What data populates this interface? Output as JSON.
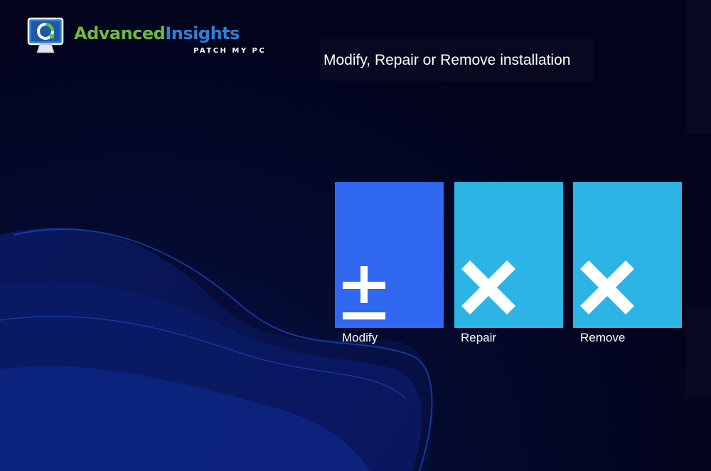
{
  "logo": {
    "word_part1": "Advanced",
    "word_part2": "Insights",
    "subtitle": "PATCH MY PC",
    "icon": "monitor-refresh-icon"
  },
  "title": "Modify, Repair or Remove installation",
  "actions": [
    {
      "label": "Modify",
      "icon": "plus-minus-icon",
      "color": "#3069ef"
    },
    {
      "label": "Repair",
      "icon": "x-icon",
      "color": "#2bb4e4"
    },
    {
      "label": "Remove",
      "icon": "x-icon",
      "color": "#2bb4e4"
    }
  ],
  "colors": {
    "background": "#03041c",
    "logo_green": "#6dbb3f",
    "logo_blue": "#2e7fd6"
  }
}
